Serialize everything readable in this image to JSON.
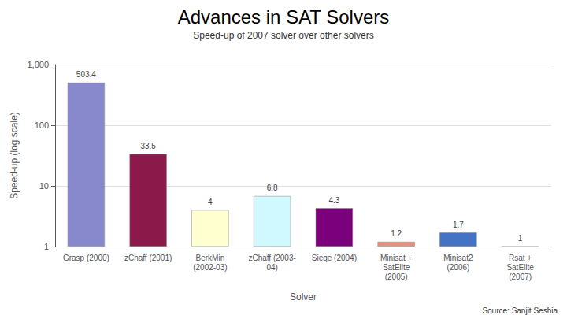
{
  "chart_data": {
    "type": "bar",
    "title": "Advances in SAT Solvers",
    "subtitle": "Speed-up of 2007 solver over other solvers",
    "xlabel": "Solver",
    "ylabel": "Speed-up (log scale)",
    "source": "Source: Sanjit Seshia",
    "categories": [
      "Grasp (2000)",
      "zChaff (2001)",
      "BerkMin\n(2002-03)",
      "zChaff (2003-\n04)",
      "Siege (2004)",
      "Minisat +\nSatElite\n(2005)",
      "Minisat2\n(2006)",
      "Rsat +\nSatElite\n(2007)"
    ],
    "values": [
      503.4,
      33.5,
      4,
      6.8,
      4.3,
      1.2,
      1.7,
      1
    ],
    "colors": [
      "#8888cc",
      "#8b1a4a",
      "#ffffd0",
      "#d0f8ff",
      "#7b007b",
      "#e89080",
      "#4472c4",
      "#f8f8f8"
    ],
    "log": "y",
    "ylim": [
      1,
      1000
    ],
    "yticks": [
      1,
      10,
      100,
      {
        "value": 1000,
        "label": "1,000"
      }
    ],
    "grid": true,
    "data_labels": true
  }
}
